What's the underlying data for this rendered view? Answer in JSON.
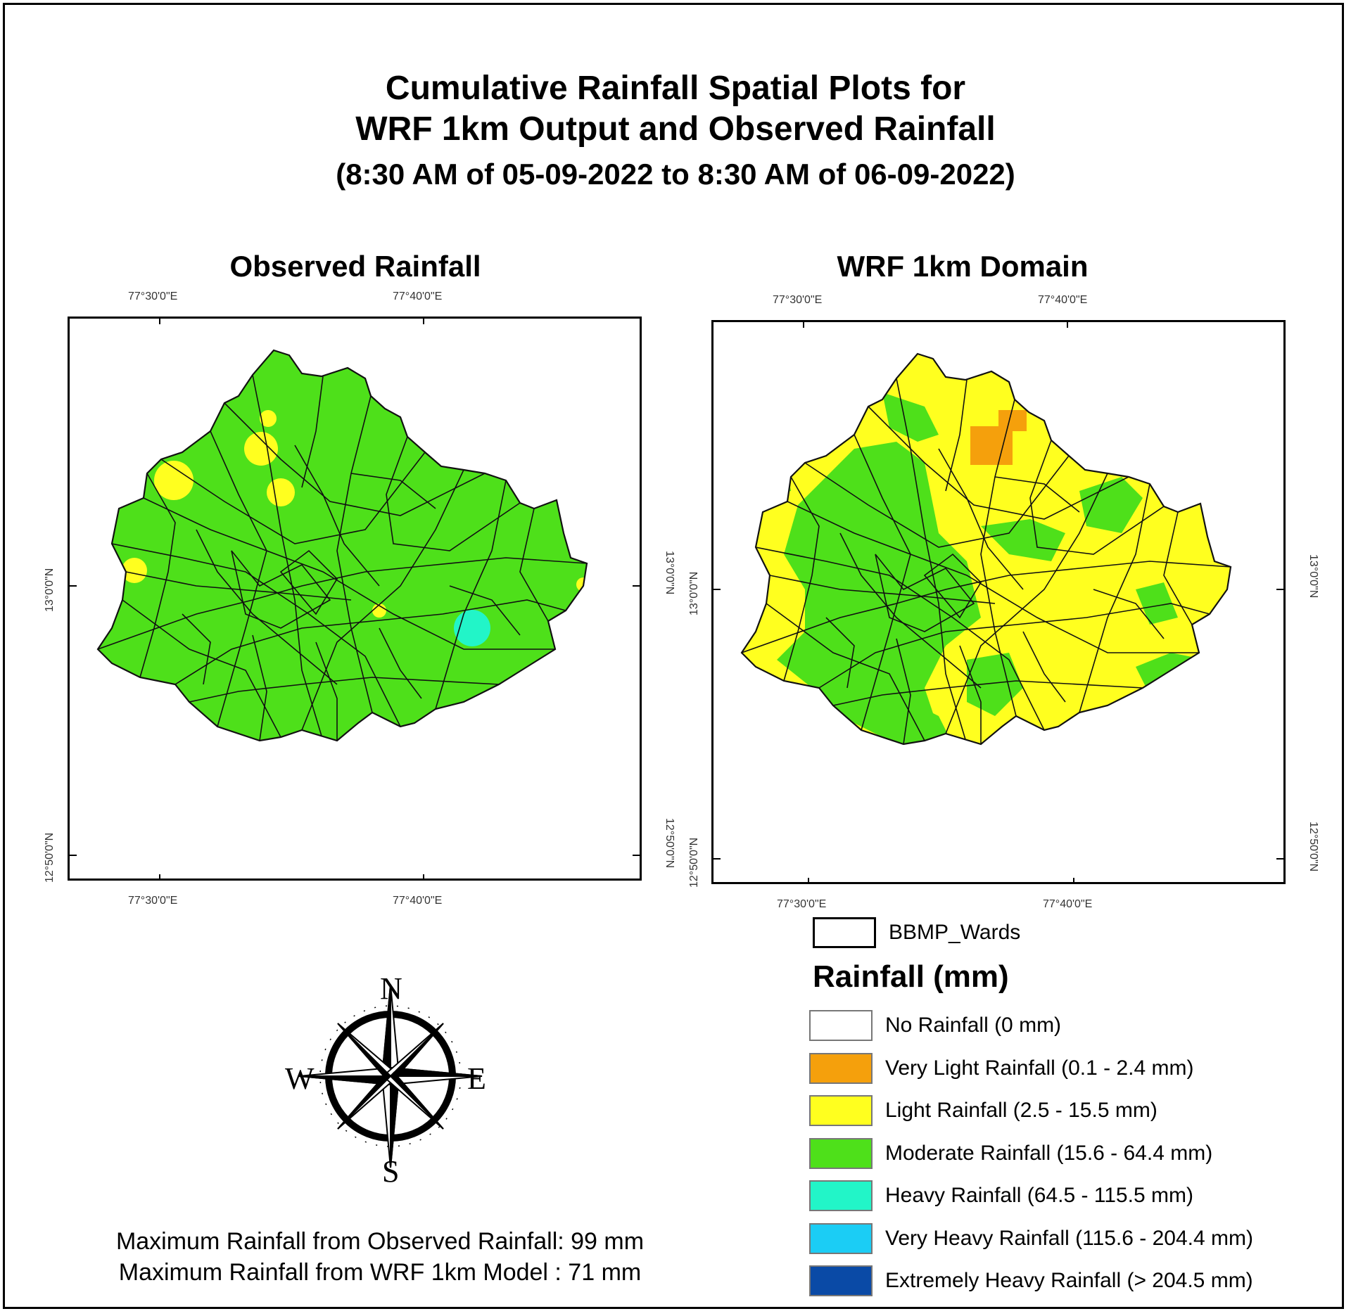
{
  "title": {
    "line1": "Cumulative Rainfall Spatial Plots for",
    "line2": "WRF 1km Output and Observed Rainfall",
    "line3": "(8:30 AM of 05-09-2022 to 8:30 AM of 06-09-2022)"
  },
  "panels": [
    {
      "title": "Observed Rainfall",
      "lon_ticks": [
        "77°30'0\"E",
        "77°40'0\"E"
      ],
      "lat_ticks": [
        "13°0'0\"N",
        "12°50'0\"N"
      ],
      "dominant_class": "Moderate Rainfall"
    },
    {
      "title": "WRF 1km Domain",
      "lon_ticks": [
        "77°30'0\"E",
        "77°40'0\"E"
      ],
      "lat_ticks": [
        "13°0'0\"N",
        "12°50'0\"N"
      ],
      "dominant_class": "Light Rainfall"
    }
  ],
  "legend": {
    "wards_label": "BBMP_Wards",
    "title": "Rainfall (mm)",
    "items": [
      {
        "label": "No Rainfall (0 mm)",
        "color": "#ffffff"
      },
      {
        "label": "Very Light Rainfall (0.1 - 2.4 mm)",
        "color": "#f5a00c"
      },
      {
        "label": "Light Rainfall (2.5 - 15.5 mm)",
        "color": "#ffff1f"
      },
      {
        "label": "Moderate Rainfall (15.6 - 64.4 mm)",
        "color": "#4ee01a"
      },
      {
        "label": "Heavy Rainfall (64.5 - 115.5 mm)",
        "color": "#22f5c8"
      },
      {
        "label": "Very Heavy Rainfall (115.6 - 204.4 mm)",
        "color": "#1bcdf5"
      },
      {
        "label": "Extremely Heavy Rainfall (> 204.5 mm)",
        "color": "#0a4aa6"
      }
    ]
  },
  "compass": {
    "n": "N",
    "s": "S",
    "e": "E",
    "w": "W"
  },
  "max_text": {
    "observed": "Maximum Rainfall from Observed Rainfall: 99 mm",
    "wrf": "Maximum Rainfall from WRF 1km Model : 71 mm"
  }
}
